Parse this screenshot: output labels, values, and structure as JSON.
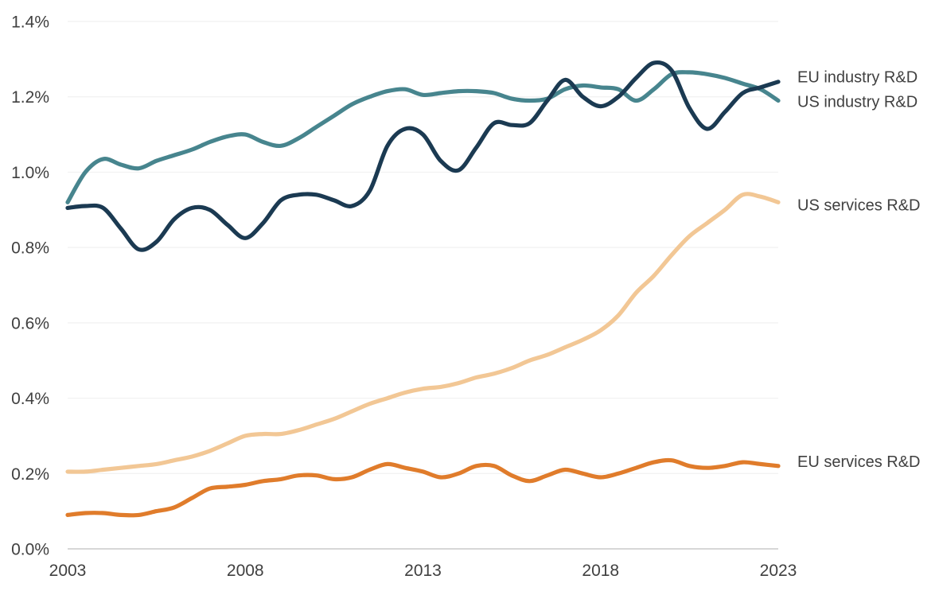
{
  "chart_data": {
    "type": "line",
    "title": "",
    "xlabel": "",
    "ylabel": "",
    "xlim": [
      2003,
      2023
    ],
    "ylim": [
      0.0,
      1.4
    ],
    "grid": "horizontal",
    "legend_position": "end-of-line-right-labels",
    "x_ticks": [
      2003,
      2008,
      2013,
      2018,
      2023
    ],
    "y_ticks": [
      {
        "value": 0.0,
        "label": "0.0%"
      },
      {
        "value": 0.2,
        "label": "0.2%"
      },
      {
        "value": 0.4,
        "label": "0.4%"
      },
      {
        "value": 0.6,
        "label": "0.6%"
      },
      {
        "value": 0.8,
        "label": "0.8%"
      },
      {
        "value": 1.0,
        "label": "1.0%"
      },
      {
        "value": 1.2,
        "label": "1.2%"
      },
      {
        "value": 1.4,
        "label": "1.4%"
      }
    ],
    "x_start": 2003,
    "x_step": 0.5,
    "series": [
      {
        "name": "EU industry R&D",
        "color": "#47858E",
        "label_anchor_value": 1.253,
        "values": [
          0.92,
          1.0,
          1.035,
          1.02,
          1.01,
          1.03,
          1.045,
          1.06,
          1.08,
          1.095,
          1.1,
          1.08,
          1.07,
          1.09,
          1.12,
          1.15,
          1.18,
          1.2,
          1.215,
          1.22,
          1.205,
          1.21,
          1.215,
          1.215,
          1.21,
          1.195,
          1.19,
          1.195,
          1.22,
          1.23,
          1.225,
          1.22,
          1.19,
          1.22,
          1.26,
          1.265,
          1.26,
          1.25,
          1.235,
          1.22,
          1.19
        ]
      },
      {
        "name": "US industry R&D",
        "color": "#1B3A52",
        "label_anchor_value": 1.188,
        "values": [
          0.905,
          0.91,
          0.905,
          0.85,
          0.795,
          0.815,
          0.875,
          0.905,
          0.9,
          0.86,
          0.825,
          0.865,
          0.925,
          0.94,
          0.94,
          0.925,
          0.91,
          0.95,
          1.07,
          1.115,
          1.1,
          1.03,
          1.005,
          1.065,
          1.13,
          1.125,
          1.13,
          1.19,
          1.245,
          1.2,
          1.175,
          1.2,
          1.25,
          1.29,
          1.27,
          1.17,
          1.115,
          1.16,
          1.21,
          1.225,
          1.24
        ]
      },
      {
        "name": "US services R&D",
        "color": "#F2C795",
        "label_anchor_value": 0.913,
        "values": [
          0.205,
          0.205,
          0.21,
          0.215,
          0.22,
          0.225,
          0.235,
          0.245,
          0.26,
          0.28,
          0.3,
          0.305,
          0.305,
          0.315,
          0.33,
          0.345,
          0.365,
          0.385,
          0.4,
          0.415,
          0.425,
          0.43,
          0.44,
          0.455,
          0.465,
          0.48,
          0.5,
          0.515,
          0.535,
          0.555,
          0.58,
          0.62,
          0.68,
          0.725,
          0.78,
          0.83,
          0.865,
          0.9,
          0.94,
          0.935,
          0.92
        ]
      },
      {
        "name": "EU services R&D",
        "color": "#E07C2B",
        "label_anchor_value": 0.232,
        "values": [
          0.09,
          0.095,
          0.095,
          0.09,
          0.09,
          0.1,
          0.11,
          0.135,
          0.16,
          0.165,
          0.17,
          0.18,
          0.185,
          0.195,
          0.195,
          0.185,
          0.19,
          0.21,
          0.225,
          0.215,
          0.205,
          0.19,
          0.2,
          0.22,
          0.22,
          0.195,
          0.18,
          0.195,
          0.21,
          0.2,
          0.19,
          0.2,
          0.215,
          0.23,
          0.235,
          0.22,
          0.215,
          0.22,
          0.23,
          0.225,
          0.22
        ]
      }
    ],
    "colors": {
      "gridline": "#F1F1F1",
      "baseline_axis": "#BFBFBF",
      "tick_label_text": "#404040",
      "series_label_text": "#404040",
      "background": "#FFFFFF"
    }
  }
}
